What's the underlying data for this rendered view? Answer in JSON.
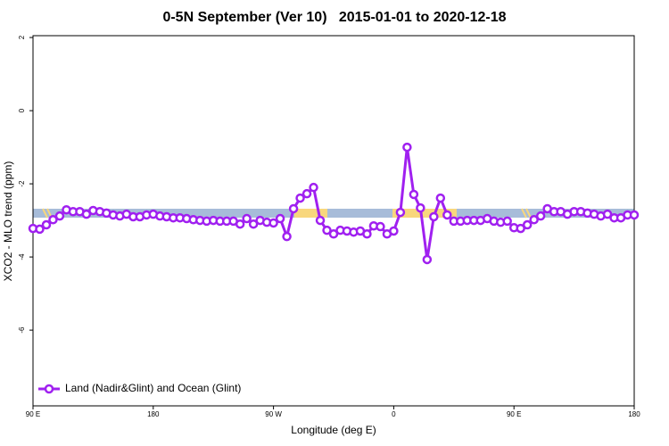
{
  "chart_data": {
    "type": "line",
    "title": "0-5N September (Ver 10)   2015-01-01 to 2020-12-18",
    "xlabel": "Longitude (deg E)",
    "ylabel": "XCO2 - MLO trend (ppm)",
    "x": [
      90,
      95,
      100,
      105,
      110,
      115,
      120,
      125,
      130,
      135,
      140,
      145,
      150,
      155,
      160,
      165,
      170,
      175,
      180,
      185,
      190,
      195,
      200,
      205,
      210,
      215,
      220,
      225,
      230,
      235,
      240,
      245,
      250,
      255,
      260,
      265,
      270,
      275,
      280,
      285,
      290,
      295,
      300,
      305,
      310,
      315,
      320,
      325,
      330,
      335,
      340,
      345,
      350,
      355,
      360,
      365,
      370,
      375,
      380,
      385,
      390,
      395,
      400,
      405,
      410,
      415,
      420,
      425,
      430,
      435,
      440,
      445,
      450,
      455,
      460,
      465,
      470,
      475,
      480,
      485,
      490,
      495,
      500,
      505,
      510,
      515,
      520,
      525,
      530,
      535,
      540
    ],
    "series": [
      {
        "name": "Land (Nadir&Glint) and Ocean (Glint)",
        "color": "#a020f0",
        "values": [
          -3.22,
          -3.24,
          -3.12,
          -2.98,
          -2.88,
          -2.71,
          -2.76,
          -2.76,
          -2.83,
          -2.73,
          -2.76,
          -2.8,
          -2.85,
          -2.88,
          -2.83,
          -2.9,
          -2.9,
          -2.85,
          -2.83,
          -2.88,
          -2.9,
          -2.93,
          -2.93,
          -2.95,
          -2.98,
          -3.0,
          -3.02,
          -3.0,
          -3.02,
          -3.02,
          -3.02,
          -3.1,
          -2.95,
          -3.1,
          -3.0,
          -3.05,
          -3.07,
          -2.95,
          -3.44,
          -2.68,
          -2.39,
          -2.27,
          -2.1,
          -3.0,
          -3.27,
          -3.37,
          -3.27,
          -3.29,
          -3.32,
          -3.29,
          -3.37,
          -3.15,
          -3.17,
          -3.37,
          -3.29,
          -2.78,
          -1.0,
          -2.29,
          -2.66,
          -4.07,
          -2.9,
          -2.39,
          -2.85,
          -3.02,
          -3.02,
          -3.0,
          -3.0,
          -3.0,
          -2.95,
          -3.02,
          -3.05,
          -3.02,
          -3.2,
          -3.22,
          -3.12,
          -2.98,
          -2.88,
          -2.68,
          -2.76,
          -2.76,
          -2.83,
          -2.76,
          -2.76,
          -2.8,
          -2.83,
          -2.88,
          -2.83,
          -2.93,
          -2.93,
          -2.85,
          -2.85
        ]
      }
    ],
    "xlim": [
      90,
      540
    ],
    "xticks": [
      {
        "value": 90,
        "label": "90 E"
      },
      180,
      {
        "value": 270,
        "label": "90 W"
      },
      {
        "value": 360,
        "label": "0"
      },
      {
        "value": 450,
        "label": "90 E"
      },
      {
        "value": 540,
        "label": "180"
      }
    ],
    "ylim": [
      -8.07,
      2.05
    ],
    "yticks": [
      -6,
      -4,
      -2,
      0,
      2
    ],
    "legend": "bottom-left"
  }
}
